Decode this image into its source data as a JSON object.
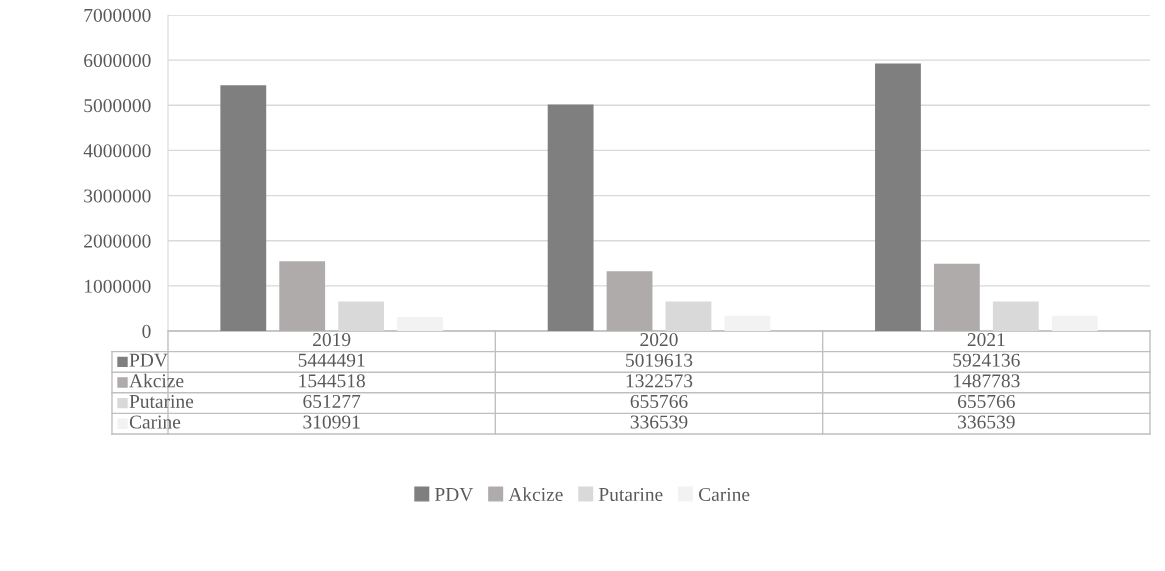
{
  "chart_data": {
    "type": "bar",
    "categories": [
      "2019",
      "2020",
      "2021"
    ],
    "series": [
      {
        "name": "PDV",
        "color": "#7f7f7f",
        "values": [
          5444491,
          5019613,
          5924136
        ]
      },
      {
        "name": "Akcize",
        "color": "#afabab",
        "values": [
          1544518,
          1322573,
          1487783
        ]
      },
      {
        "name": "Putarine",
        "color": "#d9d9d9",
        "values": [
          651277,
          655766,
          655766
        ]
      },
      {
        "name": "Carine",
        "color": "#f2f2f2",
        "values": [
          310991,
          336539,
          336539
        ]
      }
    ],
    "ylim": [
      0,
      7000000
    ],
    "yticks": [
      0,
      1000000,
      2000000,
      3000000,
      4000000,
      5000000,
      6000000,
      7000000
    ],
    "grid": "y",
    "legend": "bottom",
    "data_labels": true
  }
}
